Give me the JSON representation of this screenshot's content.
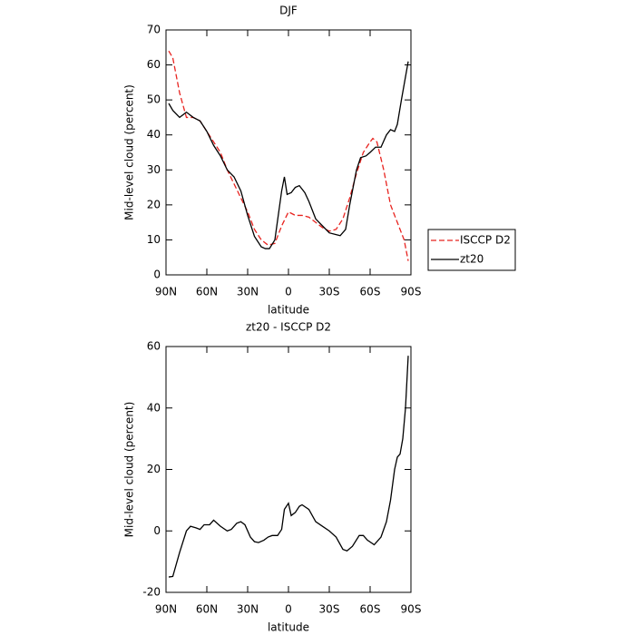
{
  "chart_data": [
    {
      "type": "line",
      "title": "DJF",
      "xlabel": "latitude",
      "ylabel": "Mid-level cloud (percent)",
      "xlim": [
        90,
        -90
      ],
      "xticks": [
        {
          "value": 90,
          "label": "90N"
        },
        {
          "value": 60,
          "label": "60N"
        },
        {
          "value": 30,
          "label": "30N"
        },
        0,
        {
          "value": -30,
          "label": "30S"
        },
        {
          "value": -60,
          "label": "60S"
        },
        {
          "value": -90,
          "label": "90S"
        }
      ],
      "ylim": [
        0,
        70
      ],
      "yticks": [
        0,
        10,
        20,
        30,
        40,
        50,
        60,
        70
      ],
      "legend": "outside-right",
      "series": [
        {
          "name": "ISCCP D2",
          "color": "#e8231f",
          "dash": true,
          "x": [
            88,
            85,
            80,
            75,
            70,
            65,
            60,
            55,
            50,
            45,
            40,
            35,
            30,
            25,
            20,
            15,
            10,
            5,
            0,
            -5,
            -10,
            -15,
            -20,
            -25,
            -30,
            -35,
            -40,
            -45,
            -50,
            -55,
            -60,
            -62,
            -65,
            -70,
            -75,
            -80,
            -85,
            -88
          ],
          "values": [
            64,
            62,
            52,
            45,
            45,
            44,
            41,
            38,
            35,
            30,
            26,
            22,
            18,
            13,
            10,
            8.5,
            9,
            14,
            18,
            17,
            17,
            16.5,
            15,
            13.5,
            12.5,
            13,
            16,
            22,
            29,
            35,
            38,
            39,
            38,
            30,
            20,
            15,
            10,
            4
          ]
        },
        {
          "name": "zt20",
          "color": "#000000",
          "dash": false,
          "x": [
            88,
            85,
            80,
            75,
            70,
            65,
            60,
            55,
            50,
            45,
            40,
            35,
            30,
            25,
            20,
            17,
            14,
            10,
            5,
            3,
            1,
            -2,
            -5,
            -8,
            -12,
            -15,
            -20,
            -25,
            -30,
            -35,
            -38,
            -42,
            -45,
            -50,
            -53,
            -57,
            -60,
            -64,
            -68,
            -72,
            -75,
            -78,
            -80,
            -83,
            -88
          ],
          "values": [
            49,
            47,
            45,
            46.5,
            45,
            44,
            41,
            37,
            34,
            30,
            28,
            24,
            17,
            11,
            8,
            7.5,
            7.5,
            10,
            24,
            28,
            23,
            23.5,
            25,
            25.5,
            23.5,
            21,
            16,
            14,
            12,
            11.5,
            11.2,
            13,
            20,
            30,
            33.5,
            34,
            35,
            36.5,
            36.5,
            40,
            41.5,
            41,
            43,
            50,
            61
          ]
        }
      ]
    },
    {
      "type": "line",
      "title": "zt20 - ISCCP D2",
      "xlabel": "latitude",
      "ylabel": "Mid-level cloud (percent)",
      "xlim": [
        90,
        -90
      ],
      "xticks": [
        {
          "value": 90,
          "label": "90N"
        },
        {
          "value": 60,
          "label": "60N"
        },
        {
          "value": 30,
          "label": "30N"
        },
        0,
        {
          "value": -30,
          "label": "30S"
        },
        {
          "value": -60,
          "label": "60S"
        },
        {
          "value": -90,
          "label": "90S"
        }
      ],
      "ylim": [
        -20,
        60
      ],
      "yticks": [
        -20,
        0,
        20,
        40,
        60
      ],
      "series": [
        {
          "color": "#000000",
          "dash": false,
          "x": [
            88,
            85,
            80,
            75,
            72,
            68,
            65,
            62,
            58,
            55,
            50,
            45,
            42,
            38,
            35,
            32,
            28,
            25,
            22,
            18,
            15,
            12,
            8,
            5,
            3,
            0,
            -2,
            -5,
            -8,
            -10,
            -15,
            -20,
            -25,
            -30,
            -35,
            -40,
            -43,
            -47,
            -52,
            -55,
            -58,
            -63,
            -68,
            -72,
            -75,
            -78,
            -80,
            -82,
            -84,
            -86,
            -88
          ],
          "values": [
            -15,
            -14.8,
            -7,
            0,
            1.5,
            1,
            0.5,
            2,
            2,
            3.5,
            1.5,
            0,
            0.5,
            2.5,
            3,
            2,
            -2,
            -3.5,
            -3.8,
            -3,
            -2,
            -1.5,
            -1.5,
            0.5,
            7,
            9,
            5,
            6,
            8,
            8.5,
            7,
            3,
            1.5,
            0,
            -2,
            -6,
            -6.5,
            -5,
            -1.5,
            -1.5,
            -3,
            -4.5,
            -2,
            3,
            10,
            20,
            24,
            25,
            30,
            40,
            57
          ]
        }
      ]
    }
  ]
}
